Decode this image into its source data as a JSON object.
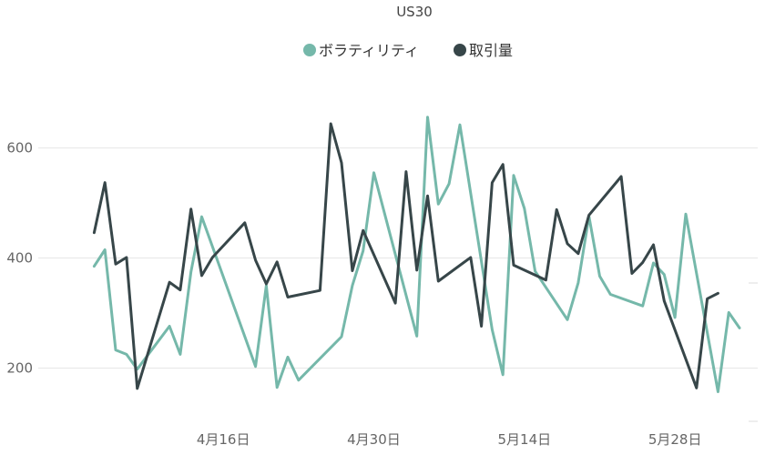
{
  "chart_data": {
    "type": "line",
    "title": "US30",
    "xlabel": "",
    "ylabel": "",
    "ylim": [
      100,
      720
    ],
    "yticks": [
      200,
      400,
      600
    ],
    "xaxis": {
      "start": "2024-04-01",
      "end": "2024-06-03",
      "tick_dates": [
        "2024-04-16",
        "2024-04-30",
        "2024-05-14",
        "2024-05-28"
      ]
    },
    "xtick_labels": [
      "4月16日",
      "4月30日",
      "5月14日",
      "5月28日"
    ],
    "grid": true,
    "legend_position": "top-center",
    "series": [
      {
        "name": "ボラティリティ",
        "color": "#75B8AA",
        "points": [
          [
            "2024-04-04",
            385
          ],
          [
            "2024-04-05",
            415
          ],
          [
            "2024-04-06",
            233
          ],
          [
            "2024-04-07",
            225
          ],
          [
            "2024-04-08",
            198
          ],
          [
            "2024-04-11",
            276
          ],
          [
            "2024-04-12",
            225
          ],
          [
            "2024-04-13",
            375
          ],
          [
            "2024-04-14",
            475
          ],
          [
            "2024-04-19",
            203
          ],
          [
            "2024-04-20",
            350
          ],
          [
            "2024-04-21",
            165
          ],
          [
            "2024-04-22",
            220
          ],
          [
            "2024-04-23",
            178
          ],
          [
            "2024-04-27",
            257
          ],
          [
            "2024-04-28",
            350
          ],
          [
            "2024-04-29",
            413
          ],
          [
            "2024-04-30",
            555
          ],
          [
            "2024-05-04",
            258
          ],
          [
            "2024-05-05",
            656
          ],
          [
            "2024-05-06",
            498
          ],
          [
            "2024-05-07",
            535
          ],
          [
            "2024-05-08",
            642
          ],
          [
            "2024-05-11",
            270
          ],
          [
            "2024-05-12",
            188
          ],
          [
            "2024-05-13",
            550
          ],
          [
            "2024-05-14",
            490
          ],
          [
            "2024-05-15",
            376
          ],
          [
            "2024-05-18",
            288
          ],
          [
            "2024-05-19",
            355
          ],
          [
            "2024-05-20",
            476
          ],
          [
            "2024-05-21",
            367
          ],
          [
            "2024-05-22",
            334
          ],
          [
            "2024-05-25",
            313
          ],
          [
            "2024-05-26",
            391
          ],
          [
            "2024-05-27",
            370
          ],
          [
            "2024-05-28",
            292
          ],
          [
            "2024-05-29",
            480
          ],
          [
            "2024-06-01",
            157
          ],
          [
            "2024-06-02",
            301
          ],
          [
            "2024-06-03",
            273
          ]
        ]
      },
      {
        "name": "取引量",
        "color": "#374649",
        "points": [
          [
            "2024-04-04",
            446
          ],
          [
            "2024-04-05",
            537
          ],
          [
            "2024-04-06",
            389
          ],
          [
            "2024-04-07",
            401
          ],
          [
            "2024-04-08",
            163
          ],
          [
            "2024-04-11",
            356
          ],
          [
            "2024-04-12",
            342
          ],
          [
            "2024-04-13",
            489
          ],
          [
            "2024-04-14",
            368
          ],
          [
            "2024-04-15",
            401
          ],
          [
            "2024-04-18",
            464
          ],
          [
            "2024-04-19",
            396
          ],
          [
            "2024-04-20",
            353
          ],
          [
            "2024-04-21",
            393
          ],
          [
            "2024-04-22",
            329
          ],
          [
            "2024-04-25",
            341
          ],
          [
            "2024-04-26",
            644
          ],
          [
            "2024-04-27",
            573
          ],
          [
            "2024-04-28",
            377
          ],
          [
            "2024-04-29",
            450
          ],
          [
            "2024-05-02",
            318
          ],
          [
            "2024-05-03",
            557
          ],
          [
            "2024-05-04",
            378
          ],
          [
            "2024-05-05",
            513
          ],
          [
            "2024-05-06",
            358
          ],
          [
            "2024-05-09",
            401
          ],
          [
            "2024-05-10",
            276
          ],
          [
            "2024-05-11",
            537
          ],
          [
            "2024-05-12",
            570
          ],
          [
            "2024-05-13",
            387
          ],
          [
            "2024-05-16",
            360
          ],
          [
            "2024-05-17",
            488
          ],
          [
            "2024-05-18",
            426
          ],
          [
            "2024-05-19",
            408
          ],
          [
            "2024-05-20",
            478
          ],
          [
            "2024-05-23",
            548
          ],
          [
            "2024-05-24",
            372
          ],
          [
            "2024-05-25",
            392
          ],
          [
            "2024-05-26",
            424
          ],
          [
            "2024-05-27",
            322
          ],
          [
            "2024-05-30",
            164
          ],
          [
            "2024-05-31",
            326
          ],
          [
            "2024-06-01",
            336
          ]
        ]
      }
    ]
  }
}
